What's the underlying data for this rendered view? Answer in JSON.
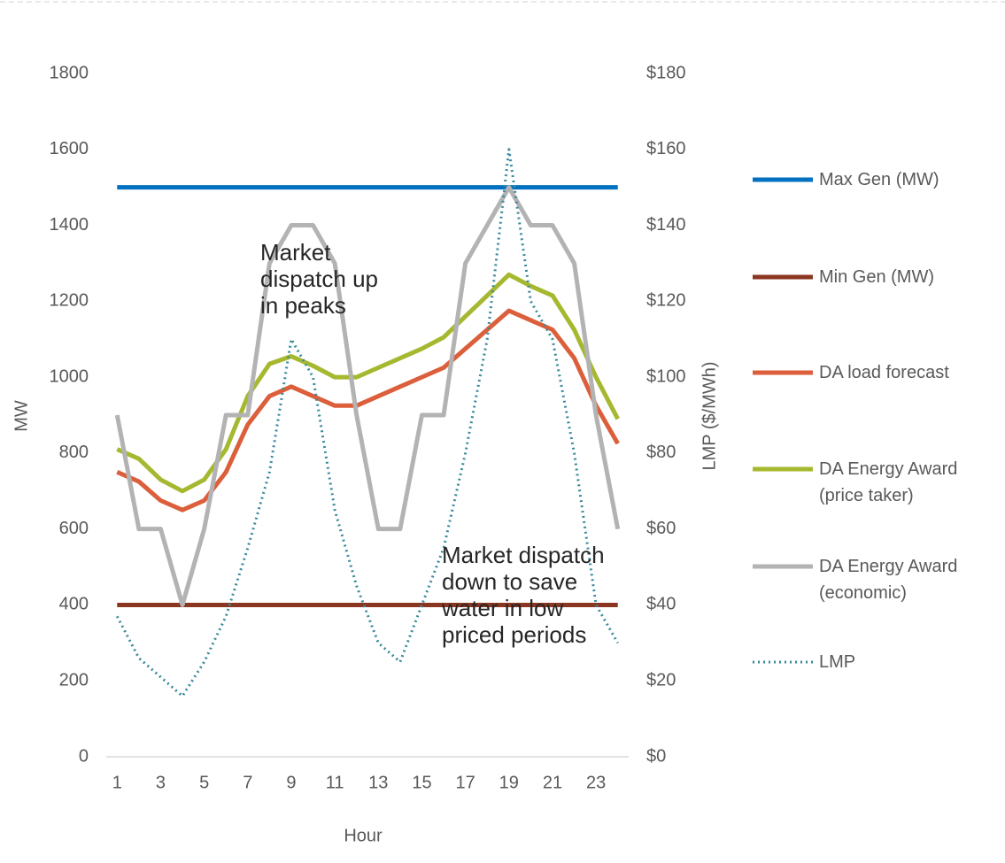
{
  "chart_data": {
    "type": "line",
    "x_label": "Hour",
    "y_label": "MW",
    "y2_label": "LMP ($/MWh)",
    "x": [
      1,
      2,
      3,
      4,
      5,
      6,
      7,
      8,
      9,
      10,
      11,
      12,
      13,
      14,
      15,
      16,
      17,
      18,
      19,
      20,
      21,
      22,
      23,
      24
    ],
    "xlim": [
      0.5,
      24.5
    ],
    "xticks": [
      1,
      3,
      5,
      7,
      9,
      11,
      13,
      15,
      17,
      19,
      21,
      23
    ],
    "ylim": [
      0,
      1800
    ],
    "yticks": [
      0,
      200,
      400,
      600,
      800,
      1000,
      1200,
      1400,
      1600,
      1800
    ],
    "y2lim": [
      0,
      180
    ],
    "y2ticks": [
      {
        "value": 0,
        "label": "$0"
      },
      {
        "value": 20,
        "label": "$20"
      },
      {
        "value": 40,
        "label": "$40"
      },
      {
        "value": 60,
        "label": "$60"
      },
      {
        "value": 80,
        "label": "$80"
      },
      {
        "value": 100,
        "label": "$100"
      },
      {
        "value": 120,
        "label": "$120"
      },
      {
        "value": 140,
        "label": "$140"
      },
      {
        "value": 160,
        "label": "$160"
      },
      {
        "value": 180,
        "label": "$180"
      }
    ],
    "grid": false,
    "legend": "right",
    "series": [
      {
        "name": "Max Gen (MW)",
        "color": "#0070c0",
        "values": [
          1500,
          1500,
          1500,
          1500,
          1500,
          1500,
          1500,
          1500,
          1500,
          1500,
          1500,
          1500,
          1500,
          1500,
          1500,
          1500,
          1500,
          1500,
          1500,
          1500,
          1500,
          1500,
          1500,
          1500
        ]
      },
      {
        "name": "Min Gen (MW)",
        "color": "#8b3620",
        "values": [
          400,
          400,
          400,
          400,
          400,
          400,
          400,
          400,
          400,
          400,
          400,
          400,
          400,
          400,
          400,
          400,
          400,
          400,
          400,
          400,
          400,
          400,
          400,
          400
        ]
      },
      {
        "name": "DA load forecast",
        "color": "#dc5f3b",
        "values": [
          750,
          725,
          675,
          650,
          675,
          750,
          875,
          950,
          975,
          950,
          925,
          925,
          950,
          975,
          1000,
          1025,
          1075,
          1125,
          1175,
          1150,
          1125,
          1050,
          925,
          825
        ]
      },
      {
        "name": "DA Energy Award (price taker)",
        "color": "#a6b82f",
        "values": [
          810,
          785,
          730,
          700,
          730,
          810,
          950,
          1035,
          1055,
          1030,
          1000,
          1000,
          1025,
          1050,
          1075,
          1105,
          1160,
          1215,
          1270,
          1240,
          1215,
          1125,
          1000,
          890
        ]
      },
      {
        "name": "DA Energy Award (economic)",
        "color": "#b3b3b3",
        "values": [
          900,
          600,
          600,
          400,
          600,
          900,
          900,
          1300,
          1400,
          1400,
          1300,
          900,
          600,
          600,
          900,
          900,
          1300,
          1400,
          1500,
          1400,
          1400,
          1300,
          900,
          600
        ]
      },
      {
        "name": "LMP",
        "color": "#3a8a9c",
        "axis": "y2",
        "dash": true,
        "values": [
          37,
          26,
          21,
          16,
          25,
          37,
          55,
          75,
          110,
          100,
          65,
          45,
          30,
          25,
          40,
          55,
          80,
          110,
          160,
          120,
          110,
          80,
          40,
          30
        ]
      }
    ],
    "annotations": [
      "Market dispatch up in peaks",
      "Market dispatch down to save water in low priced periods"
    ]
  }
}
